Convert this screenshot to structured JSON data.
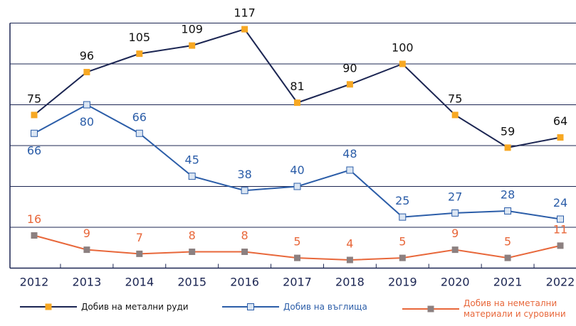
{
  "chart_data": {
    "type": "line",
    "categories": [
      "2012",
      "2013",
      "2014",
      "2015",
      "2016",
      "2017",
      "2018",
      "2019",
      "2020",
      "2021",
      "2022"
    ],
    "series": [
      {
        "name": "Добив на метални руди",
        "color": "#1b2552",
        "marker_color": "#f7a823",
        "values": [
          75,
          96,
          105,
          109,
          117,
          81,
          90,
          100,
          75,
          59,
          64
        ]
      },
      {
        "name": "Добив на въглища",
        "color": "#2b5da8",
        "marker_color": "#dbe6f3",
        "values": [
          66,
          80,
          66,
          45,
          38,
          40,
          48,
          25,
          27,
          28,
          24
        ]
      },
      {
        "name": "Добив на неметални материали и суровини",
        "color": "#e8673a",
        "marker_color": "#8c8080",
        "values": [
          16,
          9,
          7,
          8,
          8,
          5,
          4,
          5,
          9,
          5,
          11
        ]
      }
    ],
    "ylim": [
      0,
      120
    ],
    "yticks": [
      0,
      20,
      40,
      60,
      80,
      100,
      120
    ],
    "grid": true
  }
}
